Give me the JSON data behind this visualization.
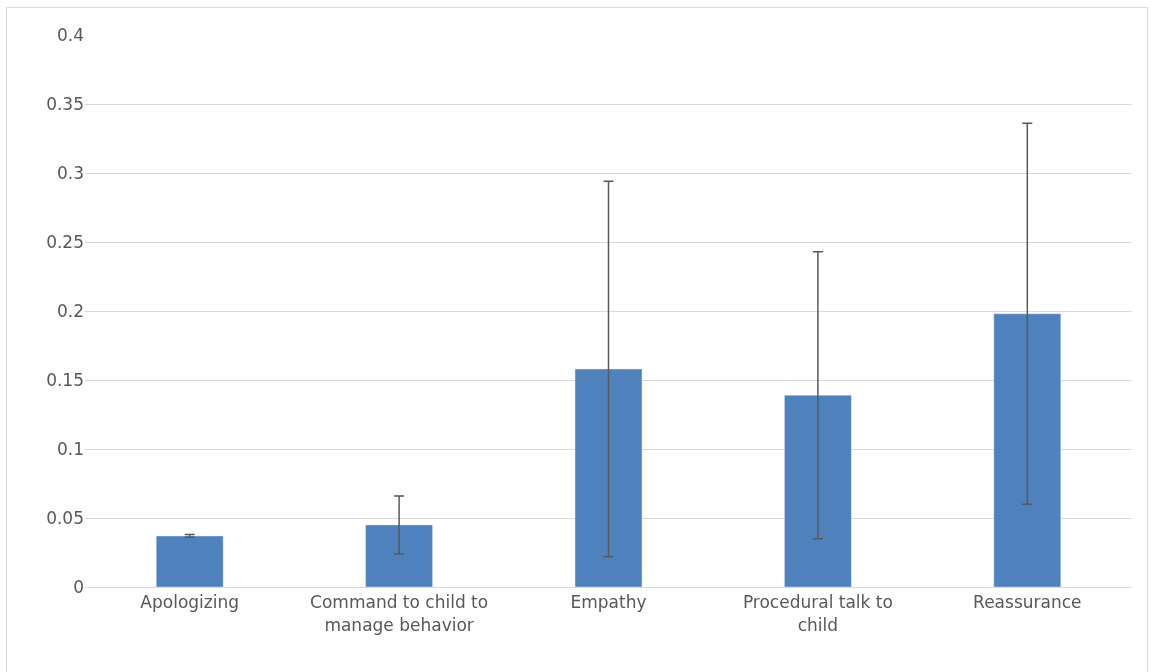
{
  "chart_data": {
    "type": "bar",
    "categories": [
      "Apologizing",
      "Command to child to manage behavior",
      "Empathy",
      "Procedural talk to child",
      "Reassurance"
    ],
    "values": [
      0.037,
      0.045,
      0.158,
      0.139,
      0.198
    ],
    "errors": [
      0.001,
      0.021,
      0.136,
      0.104,
      0.138
    ],
    "color": "#4f81bd",
    "ylim": [
      0,
      0.4
    ],
    "yticks": [
      0,
      0.05,
      0.1,
      0.15,
      0.2,
      0.25,
      0.3,
      0.35,
      0.4
    ],
    "grid": "y"
  }
}
